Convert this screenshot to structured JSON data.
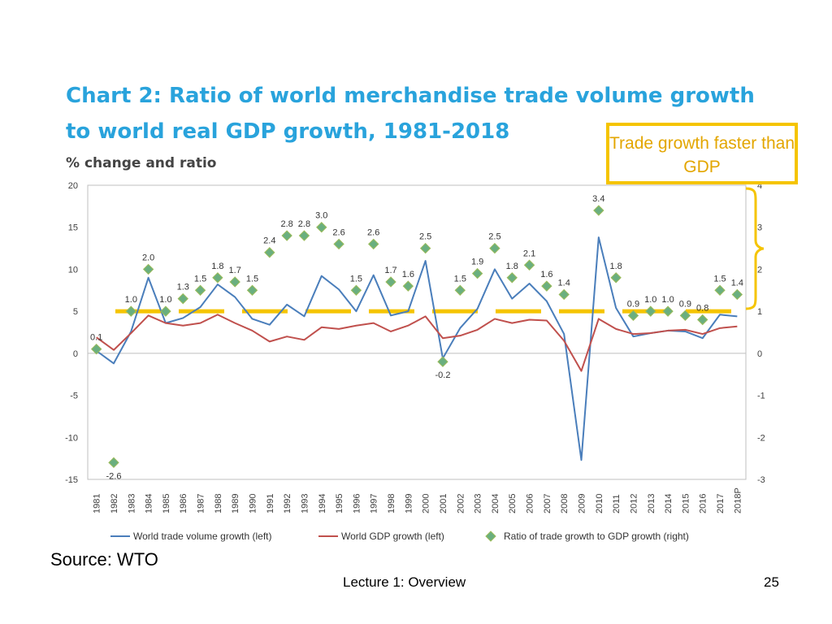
{
  "chart_title": "Chart 2: Ratio of world merchandise trade volume growth to world real GDP growth, 1981-2018",
  "callout": "Trade growth faster than GDP",
  "source": "Source:  WTO",
  "footer": "Lecture 1:  Overview",
  "page_number": "25",
  "colors": {
    "trade": "#4a7ebb",
    "gdp": "#c0504d",
    "ratio_fill": "#6aaf7f",
    "ratio_stroke": "#9bbb59",
    "highlight": "#f5c400"
  },
  "chart_data": {
    "type": "line",
    "title": "Chart 2: Ratio of world merchandise trade volume growth to world real GDP growth, 1981-2018",
    "subtitle": "% change and ratio",
    "categories": [
      "1981",
      "1982",
      "1983",
      "1984",
      "1985",
      "1986",
      "1987",
      "1988",
      "1989",
      "1990",
      "1991",
      "1992",
      "1993",
      "1994",
      "1995",
      "1996",
      "1997",
      "1998",
      "1999",
      "2000",
      "2001",
      "2002",
      "2003",
      "2004",
      "2005",
      "2006",
      "2007",
      "2008",
      "2009",
      "2010",
      "2011",
      "2012",
      "2013",
      "2014",
      "2015",
      "2016",
      "2017",
      "2018P"
    ],
    "y_left": {
      "min": -15,
      "max": 20,
      "ticks": [
        20,
        15,
        10,
        5,
        0,
        -5,
        -10,
        -15
      ]
    },
    "y_right": {
      "min": -3,
      "max": 4,
      "ticks": [
        4,
        3,
        2,
        1,
        0,
        -1,
        -2,
        -3
      ]
    },
    "series": [
      {
        "name": "World trade volume growth (left)",
        "axis": "left",
        "values": [
          0.3,
          -1.2,
          2.6,
          9.0,
          3.6,
          4.2,
          5.5,
          8.2,
          6.7,
          4.1,
          3.4,
          5.8,
          4.4,
          9.2,
          7.6,
          5.0,
          9.3,
          4.5,
          5.0,
          11.0,
          -0.6,
          3.0,
          5.3,
          10.0,
          6.5,
          8.3,
          6.2,
          2.3,
          -12.7,
          13.8,
          5.4,
          2.0,
          2.4,
          2.7,
          2.6,
          1.8,
          4.6,
          4.4
        ]
      },
      {
        "name": "World GDP growth (left)",
        "axis": "left",
        "values": [
          1.9,
          0.4,
          2.4,
          4.5,
          3.6,
          3.3,
          3.6,
          4.6,
          3.6,
          2.7,
          1.4,
          2.0,
          1.6,
          3.1,
          2.9,
          3.3,
          3.6,
          2.6,
          3.3,
          4.4,
          1.8,
          2.1,
          2.8,
          4.1,
          3.6,
          4.0,
          3.9,
          1.5,
          -2.1,
          4.1,
          2.9,
          2.3,
          2.4,
          2.7,
          2.8,
          2.3,
          3.0,
          3.2
        ]
      },
      {
        "name": "Ratio of trade growth to GDP growth (right)",
        "axis": "right",
        "values": [
          0.1,
          -2.6,
          1.0,
          2.0,
          1.0,
          1.3,
          1.5,
          1.8,
          1.7,
          1.5,
          2.4,
          2.8,
          2.8,
          3.0,
          2.6,
          1.5,
          2.6,
          1.7,
          1.6,
          2.5,
          -0.2,
          1.5,
          1.9,
          2.5,
          1.8,
          2.1,
          1.6,
          1.4,
          null,
          3.4,
          1.8,
          0.9,
          1.0,
          1.0,
          0.9,
          0.8,
          1.5,
          1.4
        ]
      }
    ],
    "ratio_labels": [
      "0.1",
      "-2.6",
      "1.0",
      "2.0",
      "1.0",
      "1.3",
      "1.5",
      "1.8",
      "1.7",
      "1.5",
      "2.4",
      "2.8",
      "2.8",
      "3.0",
      "2.6",
      "1.5",
      "2.6",
      "1.7",
      "1.6",
      "2.5",
      "-0.2",
      "1.5",
      "1.9",
      "2.5",
      "1.8",
      "2.1",
      "1.6",
      "1.4",
      "",
      "3.4",
      "1.8",
      "0.9",
      "1.0",
      "1.0",
      "0.9",
      "0.8",
      "1.5",
      "1.4"
    ],
    "reference_line": {
      "axis": "right",
      "value": 1,
      "style": "dashed"
    },
    "legend": [
      "World trade volume growth (left)",
      "World GDP growth (left)",
      "Ratio of trade growth to GDP growth (right)"
    ],
    "legend_position": "bottom"
  }
}
